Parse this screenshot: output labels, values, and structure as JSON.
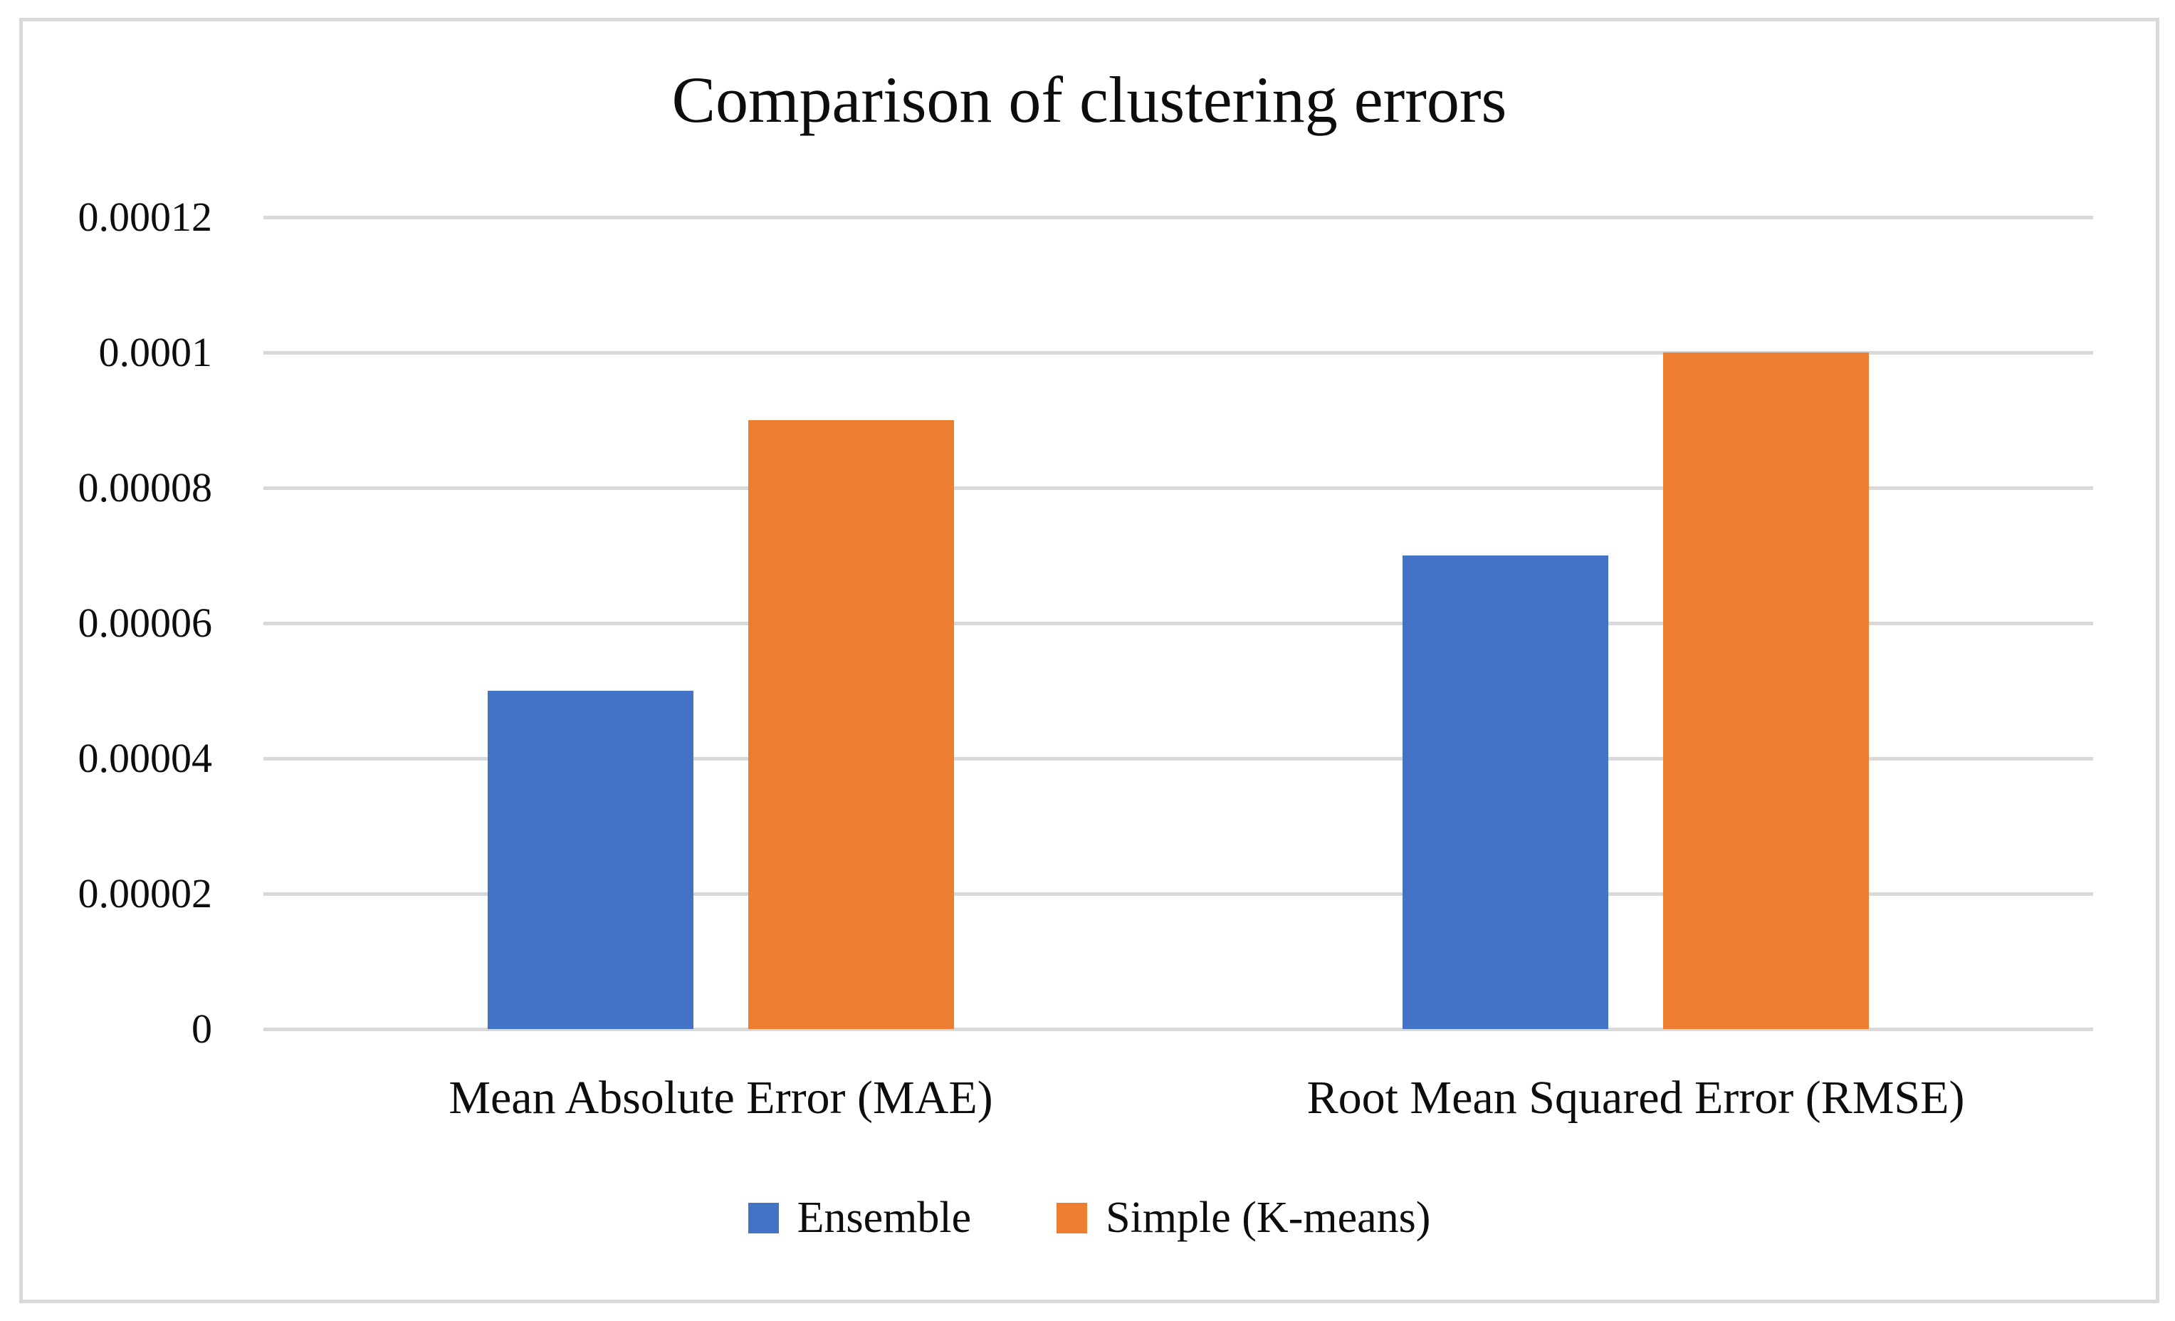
{
  "figure": {
    "title": "Comparison of clustering errors"
  },
  "chart_data": {
    "type": "bar",
    "title": "Comparison of clustering errors",
    "xlabel": "",
    "ylabel": "",
    "categories": [
      "Mean Absolute Error (MAE)",
      "Root Mean Squared Error (RMSE)"
    ],
    "series": [
      {
        "name": "Ensemble",
        "color": "#4472C4",
        "values": [
          5e-05,
          7e-05
        ]
      },
      {
        "name": "Simple (K-means)",
        "color": "#ED7D31",
        "values": [
          9e-05,
          0.0001
        ]
      }
    ],
    "ylim": [
      0,
      0.00012
    ],
    "ytick_labels": [
      "0",
      "0.00002",
      "0.00004",
      "0.00006",
      "0.00008",
      "0.0001",
      "0.00012"
    ],
    "grid": true,
    "gridline_step": 2e-05,
    "legend_position": "bottom"
  },
  "style": {
    "grid_color": "#D9D9D9",
    "frame_border_color": "#D9D9D9",
    "background": "#FFFFFF",
    "text_color": "#0D0D0D"
  }
}
